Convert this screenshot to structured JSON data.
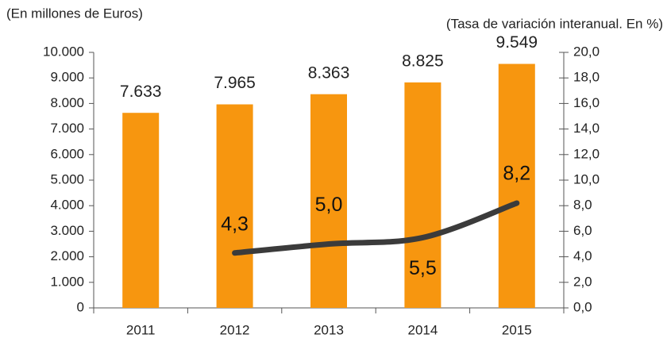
{
  "chart_data": {
    "type": "bar",
    "y_label": "(En millones de Euros)",
    "y2_label": "(Tasa de variación interanual. En %)",
    "categories": [
      "2011",
      "2012",
      "2013",
      "2014",
      "2015"
    ],
    "series": [
      {
        "name": "Millones de Euros",
        "type": "bar",
        "color": "#f7960f",
        "values": [
          7633,
          7965,
          8363,
          8825,
          9549
        ],
        "value_labels": [
          "7.633",
          "7.965",
          "8.363",
          "8.825",
          "9.549"
        ]
      },
      {
        "name": "Tasa de variación interanual",
        "type": "line",
        "axis": "y2",
        "color": "#3b3b3b",
        "values": [
          null,
          4.3,
          5.0,
          5.5,
          8.2
        ],
        "value_labels": [
          null,
          "4,3",
          "5,0",
          "5,5",
          "8,2"
        ]
      }
    ],
    "ylim": [
      0,
      10000
    ],
    "yticks": [
      0,
      {
        "value": 1000,
        "label": "1.000"
      },
      {
        "value": 2000,
        "label": "2.000"
      },
      {
        "value": 3000,
        "label": "3.000"
      },
      {
        "value": 4000,
        "label": "4.000"
      },
      {
        "value": 5000,
        "label": "5.000"
      },
      {
        "value": 6000,
        "label": "6.000"
      },
      {
        "value": 7000,
        "label": "7.000"
      },
      {
        "value": 8000,
        "label": "8.000"
      },
      {
        "value": 9000,
        "label": "9.000"
      },
      {
        "value": 10000,
        "label": "10.000"
      }
    ],
    "y2lim": [
      0,
      20
    ],
    "y2ticks": [
      {
        "value": 0,
        "label": "0,0"
      },
      {
        "value": 2,
        "label": "2,0"
      },
      {
        "value": 4,
        "label": "4,0"
      },
      {
        "value": 6,
        "label": "6,0"
      },
      {
        "value": 8,
        "label": "8,0"
      },
      {
        "value": 10,
        "label": "10,0"
      },
      {
        "value": 12,
        "label": "12,0"
      },
      {
        "value": 14,
        "label": "14,0"
      },
      {
        "value": 16,
        "label": "16,0"
      },
      {
        "value": 18,
        "label": "18,0"
      },
      {
        "value": 20,
        "label": "20,0"
      }
    ],
    "grid": false
  }
}
